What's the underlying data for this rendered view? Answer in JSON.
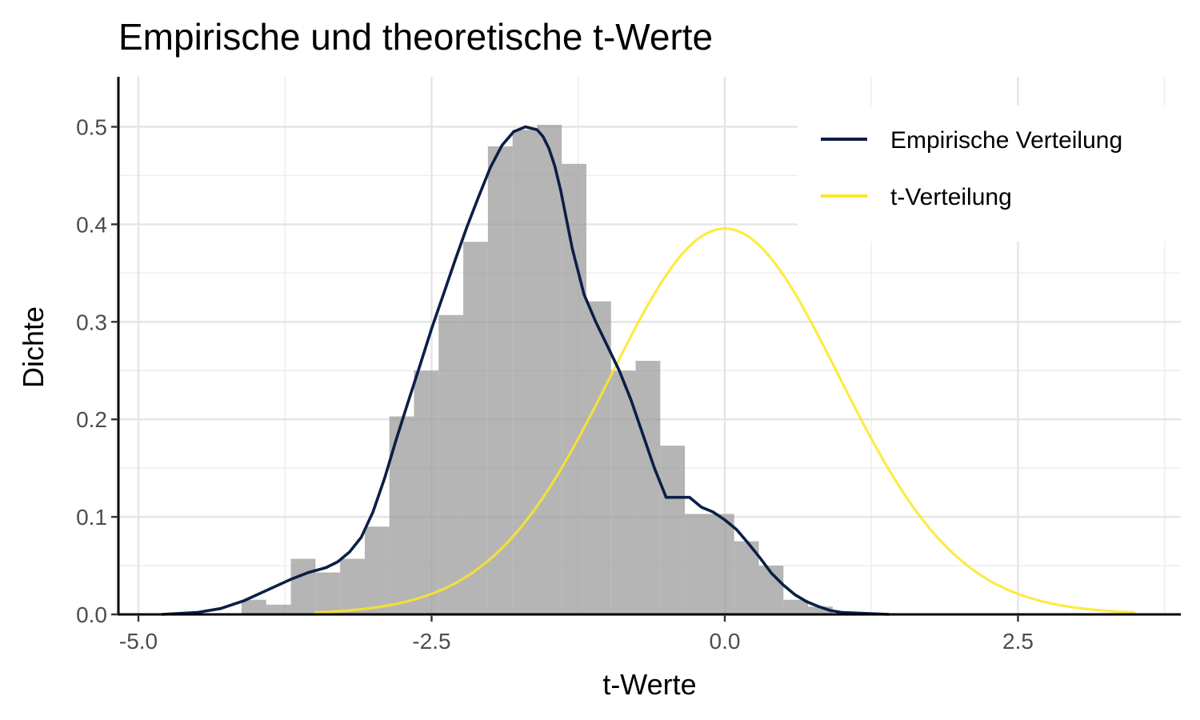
{
  "chart_data": {
    "type": "histogram",
    "title": "Empirische und theoretische t-Werte",
    "xlabel": "t-Werte",
    "ylabel": "Dichte",
    "xlim": [
      -5.2,
      3.7
    ],
    "ylim": [
      0,
      0.55
    ],
    "x_ticks": [
      -5.0,
      -2.5,
      0.0,
      2.5
    ],
    "x_tick_labels": [
      "-5.0",
      "-2.5",
      "0.0",
      "2.5"
    ],
    "y_ticks": [
      0.0,
      0.1,
      0.2,
      0.3,
      0.4,
      0.5
    ],
    "y_tick_labels": [
      "0.0",
      "0.1",
      "0.2",
      "0.3",
      "0.4",
      "0.5"
    ],
    "grid": true,
    "legend_position": "top-right",
    "histogram": {
      "bin_width": 0.21,
      "bin_starts": [
        -4.12,
        -3.91,
        -3.7,
        -3.49,
        -3.28,
        -3.07,
        -2.86,
        -2.65,
        -2.44,
        -2.23,
        -2.02,
        -1.81,
        -1.6,
        -1.39,
        -1.18,
        -0.97,
        -0.76,
        -0.55,
        -0.34,
        -0.13,
        0.08,
        0.29,
        0.5,
        0.71
      ],
      "densities": [
        0.015,
        0.01,
        0.057,
        0.043,
        0.057,
        0.09,
        0.203,
        0.25,
        0.307,
        0.382,
        0.48,
        0.497,
        0.502,
        0.462,
        0.321,
        0.25,
        0.26,
        0.173,
        0.103,
        0.103,
        0.075,
        0.05,
        0.015,
        0.008
      ]
    },
    "series": [
      {
        "name": "Empirische Verteilung",
        "color": "#0b1f47",
        "x": [
          -4.8,
          -4.5,
          -4.3,
          -4.1,
          -3.9,
          -3.7,
          -3.55,
          -3.4,
          -3.3,
          -3.2,
          -3.1,
          -3.0,
          -2.9,
          -2.8,
          -2.7,
          -2.6,
          -2.5,
          -2.4,
          -2.3,
          -2.2,
          -2.1,
          -2.0,
          -1.9,
          -1.8,
          -1.7,
          -1.6,
          -1.55,
          -1.5,
          -1.45,
          -1.4,
          -1.3,
          -1.2,
          -1.1,
          -1.0,
          -0.9,
          -0.8,
          -0.7,
          -0.6,
          -0.5,
          -0.4,
          -0.3,
          -0.2,
          -0.1,
          0.0,
          0.1,
          0.2,
          0.3,
          0.4,
          0.5,
          0.6,
          0.7,
          0.8,
          0.9,
          1.0,
          1.2,
          1.4
        ],
        "y": [
          0.0,
          0.002,
          0.006,
          0.014,
          0.025,
          0.036,
          0.043,
          0.048,
          0.054,
          0.064,
          0.079,
          0.105,
          0.14,
          0.18,
          0.218,
          0.255,
          0.293,
          0.328,
          0.363,
          0.397,
          0.428,
          0.458,
          0.481,
          0.495,
          0.5,
          0.497,
          0.49,
          0.478,
          0.46,
          0.435,
          0.375,
          0.328,
          0.3,
          0.275,
          0.25,
          0.22,
          0.185,
          0.15,
          0.12,
          0.12,
          0.12,
          0.11,
          0.105,
          0.097,
          0.087,
          0.073,
          0.058,
          0.042,
          0.03,
          0.02,
          0.013,
          0.008,
          0.004,
          0.002,
          0.001,
          0.0
        ]
      },
      {
        "name": "t-Verteilung",
        "color": "#fde725",
        "curve": "t-density",
        "df": 30,
        "x_range": [
          -3.5,
          3.5
        ]
      }
    ]
  }
}
